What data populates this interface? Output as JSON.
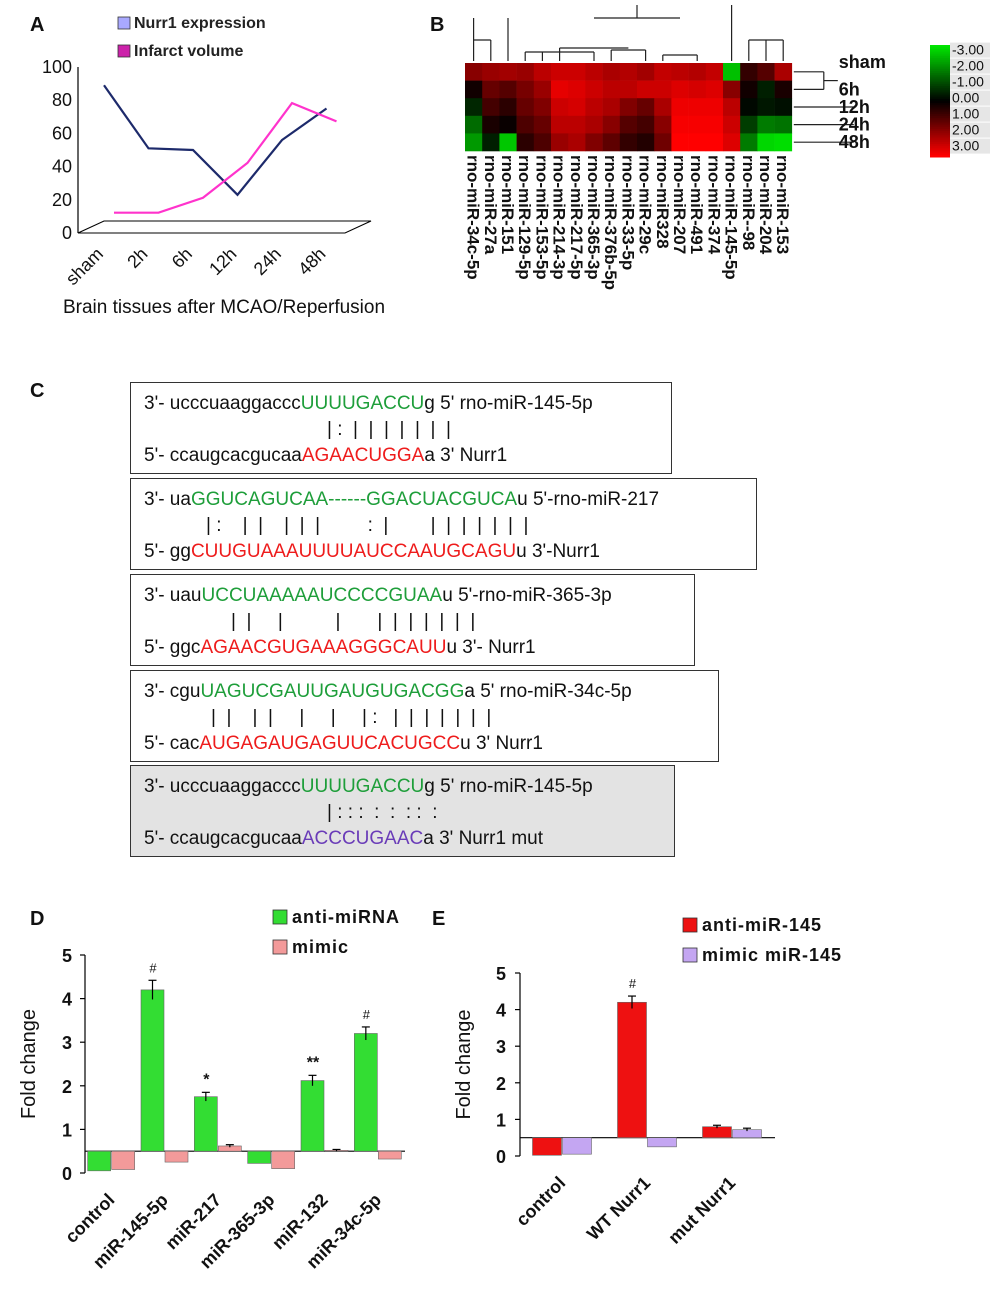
{
  "panels": {
    "a": "A",
    "b": "B",
    "c": "C",
    "d": "D",
    "e": "E"
  },
  "colors": {
    "nurr1_line": "#1d2a6b",
    "infarct_line": "#ff33cc",
    "green": "#1e9e3a",
    "red": "#ee1c1c",
    "purple": "#6a3cb8",
    "bar_green": "#33dd33",
    "bar_pink": "#f39a9a",
    "bar_red": "#ee1111",
    "bar_lavender": "#c4a6f2"
  },
  "chart_a": {
    "type": "line",
    "legend": [
      "Nurr1 expression",
      "Infarct volume"
    ],
    "xlabel": "Brain tissues after MCAO/Reperfusion",
    "categories": [
      "sham",
      "2h",
      "6h",
      "12h",
      "24h",
      "48h"
    ],
    "yticks": [
      "100",
      "80",
      "60",
      "40",
      "20",
      "0"
    ],
    "ylim": [
      0,
      100
    ],
    "series": [
      {
        "name": "Nurr1 expression",
        "values": [
          89,
          51,
          50,
          23,
          56,
          75
        ]
      },
      {
        "name": "Infarct volume",
        "values": [
          5,
          5,
          14,
          35,
          71,
          60
        ]
      }
    ]
  },
  "chart_b": {
    "type": "heatmap",
    "rows": [
      "sham",
      "6h",
      "12h",
      "24h",
      "48h"
    ],
    "columns": [
      "rno-miR-34c-5p",
      "rno-miR-27a",
      "rno-miR-151",
      "rno-miR-129-5p",
      "rno-miR-153-5p",
      "rno-miR-214-3p",
      "rno-miR-217-5p",
      "rno-miR-365-3p",
      "rno-miR-376b-5p",
      "rno-miR-33-5p",
      "rno-miR-29c",
      "rno-miR328",
      "rno-miR-207",
      "rno-miR-491",
      "rno-miR-374",
      "rno-miR-145-5p",
      "rno-miR--98",
      "rno-miR-204",
      "rno-miR-153"
    ],
    "scale_labels": [
      "-3.00",
      "-2.00",
      "-1.00",
      "0.00",
      "1.00",
      "2.00",
      "3.00"
    ],
    "values": [
      [
        1.6,
        1.8,
        1.9,
        1.8,
        2.2,
        2.4,
        2.4,
        2.2,
        2.0,
        2.1,
        1.9,
        2.3,
        2.2,
        2.1,
        2.3,
        -2.5,
        0.6,
        1.0,
        2.0
      ],
      [
        0.2,
        1.2,
        1.0,
        1.4,
        1.8,
        2.7,
        2.6,
        2.4,
        2.2,
        2.2,
        2.4,
        2.4,
        2.6,
        2.5,
        2.6,
        1.6,
        0.2,
        -0.4,
        0.3
      ],
      [
        -0.5,
        0.8,
        0.5,
        1.2,
        1.5,
        2.4,
        2.5,
        2.2,
        2.0,
        1.5,
        1.2,
        2.0,
        2.8,
        2.8,
        2.8,
        2.2,
        -0.1,
        -0.3,
        -0.2
      ],
      [
        -1.4,
        0.3,
        0.1,
        0.9,
        1.2,
        2.2,
        2.2,
        2.0,
        1.6,
        1.0,
        0.8,
        1.6,
        2.9,
        2.9,
        2.9,
        2.4,
        -0.8,
        -1.6,
        -1.5
      ],
      [
        -2.0,
        -0.4,
        -2.6,
        0.5,
        0.9,
        1.8,
        2.0,
        1.5,
        1.1,
        0.6,
        0.4,
        1.3,
        3.0,
        3.0,
        3.0,
        2.6,
        -1.6,
        -2.8,
        -2.9
      ]
    ]
  },
  "alignments": [
    {
      "top_prefix": "3'- ucccuaaggaccc",
      "top_mid": "UUUUGACCU",
      "top_suffix": "g 5' rno-miR-145-5p",
      "pairs": "| :  |  |  |  |  |  |  |",
      "bot_prefix": "5'- ccaugcacgucaa",
      "bot_mid": "AGAACUGGA",
      "bot_suffix": "a 3' Nurr1"
    },
    {
      "top_prefix": "3'- ua",
      "top_mid": "GGUCAGUCAA------GGACUACGUCA",
      "top_suffix": "u 5'-rno-miR-217",
      "pairs": "| :    |  |    |  |  |         :  |        |  |  |  |  |  |  |",
      "bot_prefix": "5'- gg",
      "bot_mid": "CUUGUAAAUUUUAUCCAAUGCAGU",
      "bot_suffix": "u 3'-Nurr1"
    },
    {
      "top_prefix": "3'- uau",
      "top_mid": "UCCUAAAAAUCCCCGUAA",
      "top_suffix": "u 5'-rno-miR-365-3p",
      "pairs": "|  |     |          |       |  |  |  |  |  |  |",
      "bot_prefix": "5'- ggc",
      "bot_mid": "AGAACGUGAAAGGGCAUU",
      "bot_suffix": "u 3'- Nurr1"
    },
    {
      "top_prefix": "3'- cgu",
      "top_mid": "UAGUCGAUUGAUGUGACGG",
      "top_suffix": "a 5' rno-miR-34c-5p",
      "pairs": "|  |    |  |     |     |     | :   |  |  |  |  |  |  |",
      "bot_prefix": "5'- cac",
      "bot_mid": "AUGAGAUGAGUUCACUGCC",
      "bot_suffix": "u 3' Nurr1"
    },
    {
      "top_prefix": "3'- ucccuaaggaccc",
      "top_mid": "UUUUGACCU",
      "top_suffix": "g 5' rno-miR-145-5p",
      "pairs": "| : : :  :  :  : :  :",
      "bot_prefix": "5'- ccaugcacgucaa",
      "bot_mid": "ACCCUGAAC",
      "bot_suffix": "a 3' Nurr1 mut"
    }
  ],
  "chart_d": {
    "type": "bar",
    "legend": [
      "anti-miRNA",
      "mimic"
    ],
    "ylabel": "Fold change",
    "ylim": [
      0,
      5
    ],
    "baseline": 0.5,
    "yticks": [
      "5",
      "4",
      "3",
      "2",
      "1",
      "0"
    ],
    "categories": [
      "control",
      "miR-145-5p",
      "miR-217",
      "miR-365-3p",
      "miR-132",
      "miR-34c-5p"
    ],
    "series": [
      {
        "name": "anti-miRNA",
        "values": [
          0.05,
          4.2,
          1.75,
          0.22,
          2.12,
          3.2
        ],
        "errors": [
          0,
          0.22,
          0.1,
          0,
          0.12,
          0.15
        ]
      },
      {
        "name": "mimic",
        "values": [
          0.08,
          0.25,
          0.62,
          0.1,
          0.52,
          0.32
        ],
        "errors": [
          0,
          0.02,
          0.03,
          0,
          0.02,
          0.02
        ]
      }
    ],
    "annotations": [
      "",
      "#",
      "*",
      "",
      "**",
      "#"
    ]
  },
  "chart_e": {
    "type": "bar",
    "legend": [
      "anti-miR-145",
      "mimic miR-145"
    ],
    "ylabel": "Fold change",
    "ylim": [
      0,
      5
    ],
    "baseline": 0.5,
    "yticks": [
      "5",
      "4",
      "3",
      "2",
      "1",
      "0"
    ],
    "categories": [
      "control",
      "WT Nurr1",
      "mut Nurr1"
    ],
    "series": [
      {
        "name": "anti-miR-145",
        "values": [
          0.02,
          4.2,
          0.8
        ],
        "errors": [
          0,
          0.17,
          0.04
        ]
      },
      {
        "name": "mimic miR-145",
        "values": [
          0.05,
          0.25,
          0.72
        ],
        "errors": [
          0,
          0.02,
          0.04
        ]
      }
    ],
    "annotations": [
      "",
      "#",
      ""
    ]
  }
}
